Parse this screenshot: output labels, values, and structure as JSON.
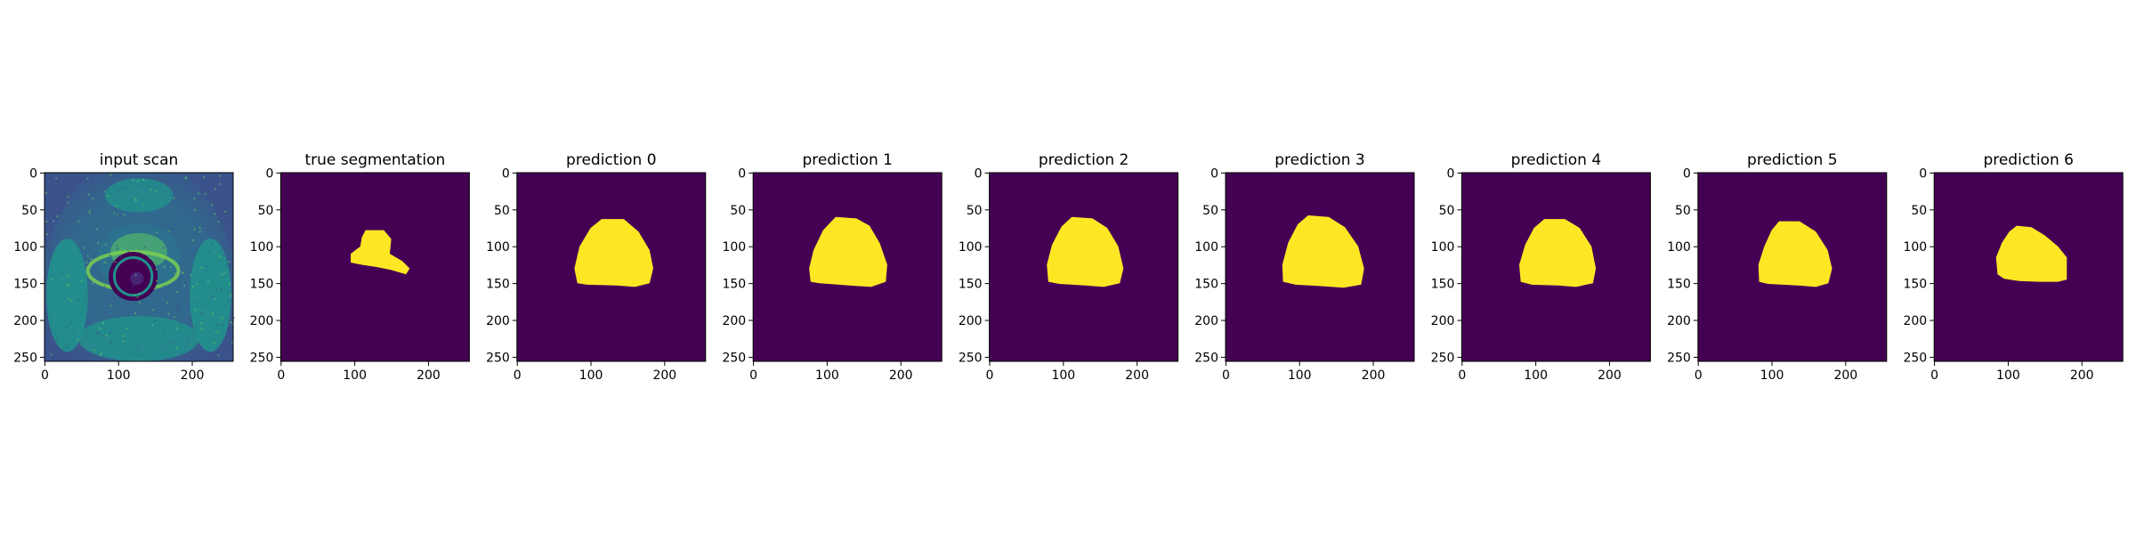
{
  "figure": {
    "panels": [
      {
        "title": "input scan",
        "kind": "scan"
      },
      {
        "title": "true segmentation",
        "kind": "truth"
      },
      {
        "title": "prediction 0",
        "kind": "pred",
        "shape": 0
      },
      {
        "title": "prediction 1",
        "kind": "pred",
        "shape": 1
      },
      {
        "title": "prediction 2",
        "kind": "pred",
        "shape": 2
      },
      {
        "title": "prediction 3",
        "kind": "pred",
        "shape": 3
      },
      {
        "title": "prediction 4",
        "kind": "pred",
        "shape": 4
      },
      {
        "title": "prediction 5",
        "kind": "pred",
        "shape": 5
      },
      {
        "title": "prediction 6",
        "kind": "pred",
        "shape": 6
      }
    ],
    "x_ticks": [
      "0",
      "100",
      "200"
    ],
    "y_ticks": [
      "0",
      "50",
      "100",
      "150",
      "200",
      "250"
    ],
    "colors": {
      "background": "#440154",
      "mask": "#fde725",
      "scan_dark": "#31688e",
      "scan_mid": "#21918c",
      "scan_bright": "#5ec962"
    }
  }
}
